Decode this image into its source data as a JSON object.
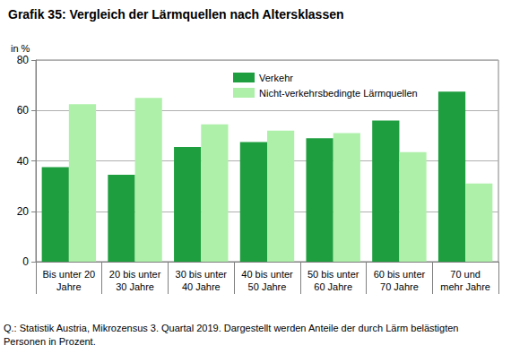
{
  "chart_data": {
    "type": "bar",
    "title": "Grafik 35: Vergleich der Lärmquellen nach Altersklassen",
    "y_label": "in %",
    "annotations": [
      "Q.: Statistik Austria, Mikrozensus 3. Quartal 2019. Dargestellt werden Anteile der durch Lärm belästigten Personen in Prozent."
    ],
    "categories": [
      "Bis unter 20\nJahre",
      "20 bis unter\n30 Jahre",
      "30 bis unter\n40 Jahre",
      "40 bis unter\n50 Jahre",
      "50 bis unter\n60 Jahre",
      "60 bis unter\n70 Jahre",
      "70 und\nmehr Jahre"
    ],
    "series": [
      {
        "name": "Verkehr",
        "color": "#1e9e3e",
        "values": [
          37.5,
          34.5,
          45.5,
          47.5,
          49,
          56,
          67.5
        ]
      },
      {
        "name": "Nicht-verkehrsbedingte Lärmquellen",
        "color": "#aef0aa",
        "values": [
          62.5,
          65,
          54.5,
          52,
          51,
          43.5,
          31
        ]
      }
    ],
    "ylim": [
      0,
      80
    ],
    "yticks": [
      0,
      20,
      40,
      60,
      80
    ],
    "grid": true,
    "legend": "top",
    "data_labels": false
  }
}
